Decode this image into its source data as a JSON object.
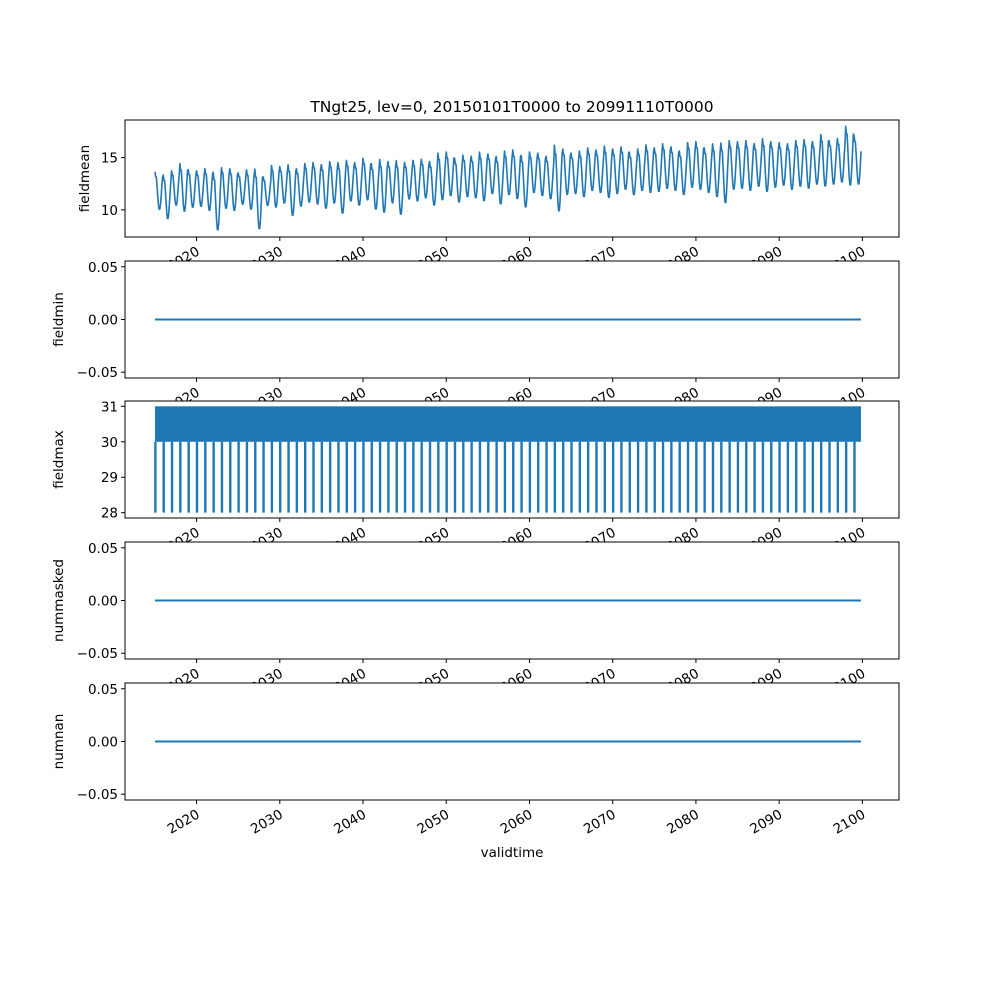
{
  "chart_data": {
    "type": "line",
    "title": "TNgt25, lev=0, 20150101T0000 to 20991110T0000",
    "xlabel": "validtime",
    "xlim": [
      2011.4,
      2104.4
    ],
    "xticks": [
      2020,
      2030,
      2040,
      2050,
      2060,
      2070,
      2080,
      2090,
      2100
    ],
    "xtick_labels": [
      "2020",
      "2030",
      "2040",
      "2050",
      "2060",
      "2070",
      "2080",
      "2090",
      "2100"
    ],
    "time_range": {
      "start_year": 2015,
      "start_month": 1,
      "end_year": 2099,
      "end_month": 11,
      "frequency": "monthly"
    },
    "color": "#1f77b4",
    "panels": [
      {
        "ylabel": "fieldmean",
        "ylim": [
          7.4,
          18.6
        ],
        "yticks": [
          10,
          15
        ],
        "ytick_labels": [
          "10",
          "15"
        ],
        "series_kind": "seasonal",
        "end_value": 15.6,
        "annual_peak": [
          13.7,
          13.4,
          13.8,
          14.5,
          13.9,
          13.8,
          14.0,
          13.7,
          14.1,
          14.0,
          13.6,
          13.9,
          14.0,
          13.2,
          14.3,
          14.2,
          14.4,
          14.0,
          14.5,
          14.6,
          14.4,
          14.7,
          14.6,
          14.8,
          14.6,
          15.0,
          14.5,
          14.9,
          14.7,
          14.8,
          14.6,
          14.8,
          14.9,
          14.7,
          15.5,
          15.6,
          15.0,
          15.3,
          15.2,
          15.6,
          15.4,
          15.2,
          15.7,
          15.8,
          15.3,
          15.6,
          15.5,
          15.2,
          16.3,
          15.9,
          15.5,
          15.7,
          16.0,
          15.8,
          16.2,
          15.9,
          16.1,
          15.6,
          15.9,
          16.3,
          16.0,
          16.4,
          16.1,
          15.7,
          16.5,
          16.6,
          16.0,
          16.4,
          16.5,
          16.7,
          16.6,
          16.7,
          16.4,
          16.9,
          16.6,
          16.5,
          16.4,
          16.7,
          16.8,
          16.6,
          17.3,
          16.7,
          16.9,
          18.1,
          17.2
        ],
        "annual_trough": [
          10.0,
          9.1,
          10.4,
          9.8,
          10.2,
          10.3,
          9.9,
          8.0,
          10.1,
          9.9,
          10.5,
          10.0,
          8.1,
          10.4,
          10.2,
          10.6,
          9.4,
          10.3,
          10.7,
          10.5,
          10.1,
          10.6,
          9.6,
          10.8,
          10.4,
          10.9,
          10.0,
          9.7,
          10.6,
          9.5,
          11.0,
          10.8,
          11.1,
          10.4,
          10.9,
          11.3,
          10.7,
          11.2,
          11.1,
          10.8,
          11.5,
          10.5,
          11.4,
          11.0,
          10.2,
          11.6,
          11.3,
          11.0,
          9.8,
          11.4,
          11.5,
          11.2,
          11.8,
          11.6,
          11.1,
          11.5,
          11.9,
          11.4,
          11.8,
          11.6,
          11.7,
          12.0,
          11.8,
          11.4,
          12.1,
          11.9,
          11.6,
          11.2,
          10.6,
          11.9,
          12.0,
          11.8,
          12.2,
          11.7,
          12.1,
          12.3,
          11.9,
          12.2,
          12.0,
          12.4,
          12.2,
          12.4,
          12.6,
          12.3,
          12.4
        ]
      },
      {
        "ylabel": "fieldmin",
        "ylim": [
          -0.0555,
          0.0555
        ],
        "yticks": [
          -0.05,
          0.0,
          0.05
        ],
        "ytick_labels": [
          "−0.05",
          "0.00",
          "0.05"
        ],
        "series_kind": "constant",
        "value": 0
      },
      {
        "ylabel": "fieldmax",
        "ylim": [
          27.85,
          31.15
        ],
        "yticks": [
          28,
          29,
          30,
          31
        ],
        "ytick_labels": [
          "28",
          "29",
          "30",
          "31"
        ],
        "series_kind": "band_with_annual_dips",
        "band": [
          30,
          31
        ],
        "annual_dip": 28
      },
      {
        "ylabel": "nummasked",
        "ylim": [
          -0.0555,
          0.0555
        ],
        "yticks": [
          -0.05,
          0.0,
          0.05
        ],
        "ytick_labels": [
          "−0.05",
          "0.00",
          "0.05"
        ],
        "series_kind": "constant",
        "value": 0
      },
      {
        "ylabel": "numnan",
        "ylim": [
          -0.0555,
          0.0555
        ],
        "yticks": [
          -0.05,
          0.0,
          0.05
        ],
        "ytick_labels": [
          "−0.05",
          "0.00",
          "0.05"
        ],
        "series_kind": "constant",
        "value": 0
      }
    ]
  }
}
